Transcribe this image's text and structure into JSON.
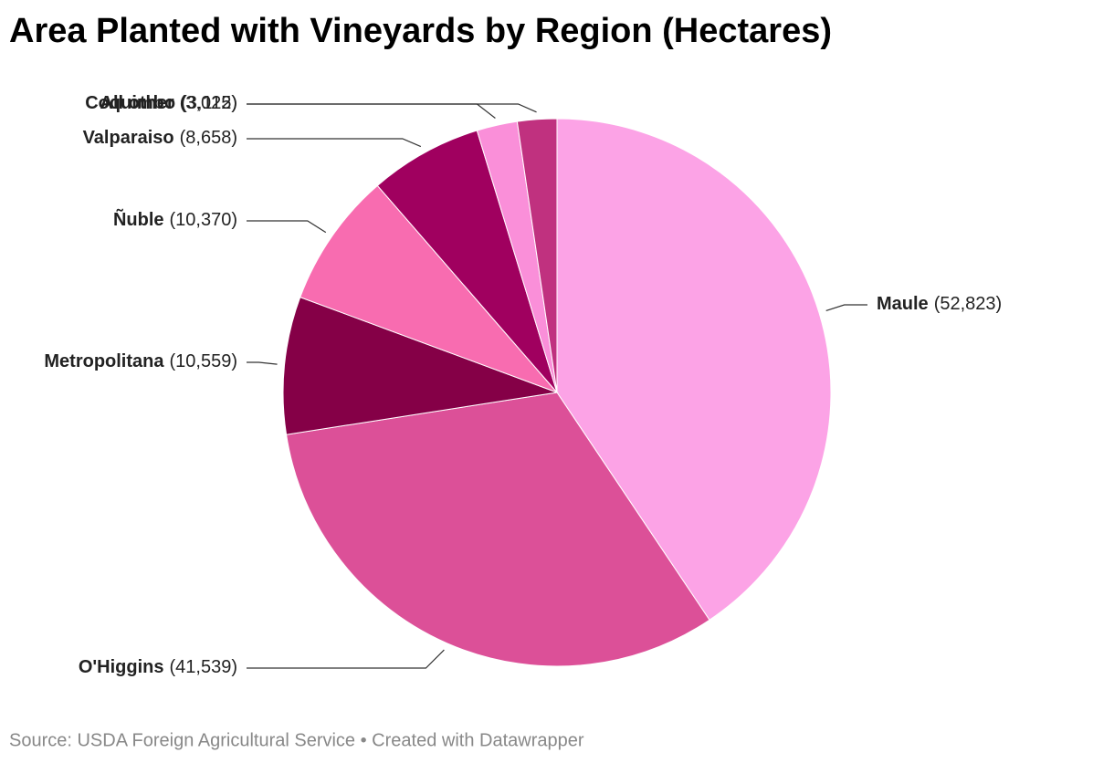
{
  "chart_data": {
    "type": "pie",
    "title": "Area Planted with Vineyards by Region (Hectares)",
    "categories": [
      "Maule",
      "O'Higgins",
      "Metropolitana",
      "Ñuble",
      "Valparaiso",
      "Coquimbo",
      "All other"
    ],
    "values": [
      52823,
      41539,
      10559,
      10370,
      8658,
      3115,
      3022
    ],
    "value_labels": [
      "(52,823)",
      "(41,539)",
      "(10,559)",
      "(10,370)",
      "(8,658)",
      "(3,115)",
      "(3,022)"
    ],
    "colors": [
      "#fca3e6",
      "#dc5098",
      "#850047",
      "#f86cb0",
      "#a0005f",
      "#fa8fd9",
      "#c0317f"
    ],
    "source": "Source: USDA Foreign Agricultural Service • Created with Datawrapper"
  }
}
